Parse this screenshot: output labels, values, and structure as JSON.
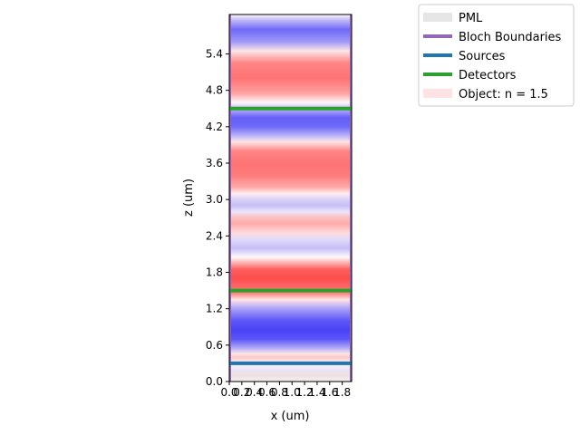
{
  "chart_data": {
    "type": "heatmap",
    "title": "",
    "xlabel": "x (um)",
    "ylabel": "z (um)",
    "xlim": [
      0.0,
      1.95
    ],
    "ylim": [
      0.0,
      6.05
    ],
    "x_ticks": [
      "0.0",
      "0.2",
      "0.4",
      "0.6",
      "0.8",
      "1.0",
      "1.2",
      "1.4",
      "1.6",
      "1.8"
    ],
    "y_ticks": [
      "0.0",
      "0.6",
      "1.2",
      "1.8",
      "2.4",
      "3.0",
      "3.6",
      "4.2",
      "4.8",
      "5.4"
    ],
    "colormap": [
      "#0000ff",
      "#ffffff",
      "#ff0000"
    ],
    "field_profile_z": [
      [
        0.0,
        0.0
      ],
      [
        0.1,
        0.15
      ],
      [
        0.2,
        -0.1
      ],
      [
        0.3,
        0.0
      ],
      [
        0.4,
        0.25
      ],
      [
        0.46,
        0.1
      ],
      [
        0.55,
        -0.4
      ],
      [
        0.7,
        -0.85
      ],
      [
        0.85,
        -0.95
      ],
      [
        1.0,
        -0.85
      ],
      [
        1.2,
        -0.45
      ],
      [
        1.35,
        0.1
      ],
      [
        1.45,
        0.6
      ],
      [
        1.55,
        0.75
      ],
      [
        1.7,
        0.9
      ],
      [
        1.85,
        0.8
      ],
      [
        1.95,
        0.4
      ],
      [
        2.05,
        0.0
      ],
      [
        2.2,
        -0.3
      ],
      [
        2.35,
        -0.15
      ],
      [
        2.45,
        0.15
      ],
      [
        2.6,
        0.4
      ],
      [
        2.7,
        0.3
      ],
      [
        2.8,
        -0.1
      ],
      [
        2.9,
        -0.3
      ],
      [
        3.0,
        -0.2
      ],
      [
        3.1,
        0.05
      ],
      [
        3.2,
        0.4
      ],
      [
        3.4,
        0.65
      ],
      [
        3.6,
        0.7
      ],
      [
        3.8,
        0.6
      ],
      [
        3.95,
        0.1
      ],
      [
        4.05,
        -0.35
      ],
      [
        4.2,
        -0.75
      ],
      [
        4.35,
        -0.8
      ],
      [
        4.48,
        -0.4
      ],
      [
        4.6,
        0.0
      ],
      [
        4.75,
        0.45
      ],
      [
        5.0,
        0.7
      ],
      [
        5.25,
        0.6
      ],
      [
        5.45,
        0.1
      ],
      [
        5.6,
        -0.5
      ],
      [
        5.8,
        -0.75
      ],
      [
        5.95,
        -0.35
      ],
      [
        6.05,
        0.0
      ]
    ],
    "sources_z": [
      0.3
    ],
    "detectors_z": [
      1.5,
      4.5
    ],
    "object_z_range": [
      0.2,
      6.05
    ],
    "pml_z_range": [
      0.0,
      0.18
    ],
    "legend_position": "upper right, outside plot",
    "legend": [
      {
        "label": "PML",
        "color": "#e6e6e6"
      },
      {
        "label": "Bloch Boundaries",
        "color": "#9467bd"
      },
      {
        "label": "Sources",
        "color": "#1f77b4"
      },
      {
        "label": "Detectors",
        "color": "#2ca02c"
      },
      {
        "label": "Object: n = 1.5",
        "color": "#fde3e3"
      }
    ]
  }
}
